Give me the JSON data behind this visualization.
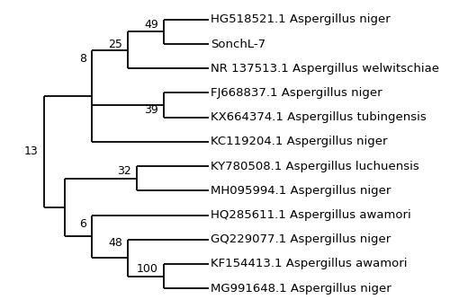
{
  "taxa": [
    "HG518521.1 Aspergillus niger",
    "SonchL-7",
    "NR 137513.1 Aspergillus welwitschiae",
    "FJ668837.1 Aspergillus niger",
    "KX664374.1 Aspergillus tubingensis",
    "KC119204.1 Aspergillus niger",
    "KY780508.1 Aspergillus luchuensis",
    "MH095994.1 Aspergillus niger",
    "HQ285611.1 Aspergillus awamori",
    "GQ229077.1 Aspergillus niger",
    "KF154413.1 Aspergillus awamori",
    "MG991648.1 Aspergillus niger"
  ],
  "background_color": "#ffffff",
  "line_color": "#000000",
  "text_color": "#000000",
  "figsize": [
    5.0,
    3.43
  ],
  "dpi": 100,
  "font_size": 9.5,
  "bootstrap_font_size": 9.0,
  "line_width": 1.3
}
